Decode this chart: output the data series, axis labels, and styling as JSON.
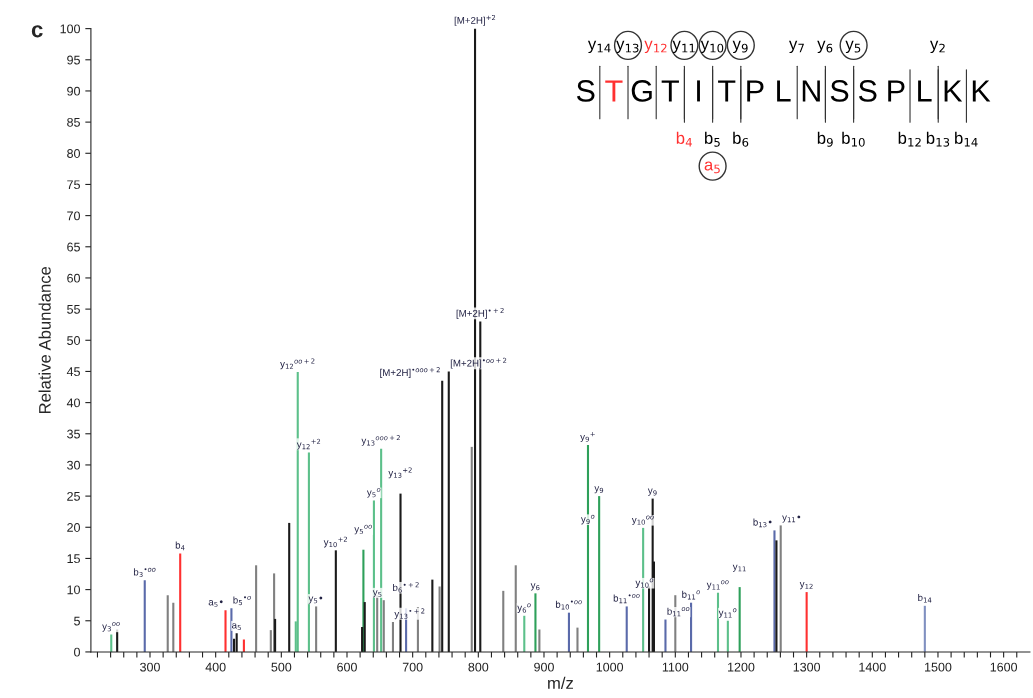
{
  "chart_data": {
    "type": "bar",
    "xlabel": "m/z",
    "ylabel": "Relative Abundance",
    "x": [
      241,
      250,
      292,
      327,
      335.5,
      346,
      415,
      424,
      428,
      432,
      443,
      461.6,
      484,
      489,
      490.5,
      512,
      522,
      525,
      542,
      553,
      583,
      623,
      625,
      627,
      641,
      646,
      652,
      656,
      670,
      681.5,
      690,
      708,
      730,
      741,
      745,
      755,
      790,
      795,
      803,
      838,
      857,
      870,
      887,
      893,
      938,
      951,
      967,
      984,
      1026,
      1051,
      1060,
      1065.5,
      1067.5,
      1085,
      1100,
      1124,
      1165,
      1180,
      1198,
      1251,
      1254,
      1260.5,
      1300,
      1480
    ],
    "values": [
      2.8,
      3.6,
      11.5,
      9.1,
      7.9,
      15.8,
      6.7,
      7.0,
      2.1,
      3.0,
      2.0,
      13.9,
      3.5,
      12.6,
      5.3,
      20.7,
      4.9,
      44.9,
      32.0,
      7.3,
      16.3,
      4.0,
      16.4,
      8.0,
      24.3,
      9.1,
      32.6,
      8.3,
      4.8,
      25.4,
      7.0,
      7.2,
      11.6,
      10.5,
      43.5,
      45.0,
      32.9,
      100,
      53,
      9.8,
      13.9,
      5.8,
      9.4,
      3.6,
      6.3,
      3.9,
      33.2,
      25.0,
      7.3,
      19.9,
      10.5,
      24.6,
      14.5,
      5.2,
      9.1,
      7.9,
      9.5,
      5.0,
      10.4,
      19.5,
      17.9,
      20.3,
      9.6,
      7.4
    ],
    "colors": [
      "#5cc08a",
      "#1a1a1a",
      "#5a6aaa",
      "#808080",
      "#808080",
      "#ff3030",
      "#ff3030",
      "#5a6aaa",
      "#1a1a1a",
      "#1a1a1a",
      "#ff3030",
      "#808080",
      "#808080",
      "#808080",
      "#1a1a1a",
      "#1a1a1a",
      "#5cc08a",
      "#5cc08a",
      "#5cc08a",
      "#808080",
      "#1a1a1a",
      "#1a1a1a",
      "#2ea05a",
      "#1a1a1a",
      "#5cc08a",
      "#808080",
      "#5cc08a",
      "#808080",
      "#808080",
      "#1a1a1a",
      "#5a6aaa",
      "#808080",
      "#1a1a1a",
      "#808080",
      "#1a1a1a",
      "#1a1a1a",
      "#808080",
      "#1a1a1a",
      "#1a1a1a",
      "#808080",
      "#808080",
      "#5cc08a",
      "#2ea05a",
      "#808080",
      "#5a6aaa",
      "#808080",
      "#2ea05a",
      "#2ea05a",
      "#5a6aaa",
      "#5cc08a",
      "#1a1a1a",
      "#1a1a1a",
      "#1a1a1a",
      "#5a6aaa",
      "#808080",
      "#5a6aaa",
      "#5cc08a",
      "#5cc08a",
      "#2ea05a",
      "#5a6aaa",
      "#1a1a1a",
      "#808080",
      "#ff3030",
      "#8090c0"
    ],
    "xlim": [
      210,
      1640
    ],
    "xticks": [
      {
        "value": 220,
        "label": null
      },
      {
        "value": 240,
        "label": null
      },
      {
        "value": 260,
        "label": null
      },
      {
        "value": 280,
        "label": null
      },
      300,
      {
        "value": 320,
        "label": null
      },
      {
        "value": 340,
        "label": null
      },
      {
        "value": 360,
        "label": null
      },
      {
        "value": 380,
        "label": null
      },
      400,
      {
        "value": 420,
        "label": null
      },
      {
        "value": 440,
        "label": null
      },
      {
        "value": 460,
        "label": null
      },
      {
        "value": 480,
        "label": null
      },
      500,
      {
        "value": 520,
        "label": null
      },
      {
        "value": 540,
        "label": null
      },
      {
        "value": 560,
        "label": null
      },
      {
        "value": 580,
        "label": null
      },
      600,
      {
        "value": 620,
        "label": null
      },
      {
        "value": 640,
        "label": null
      },
      {
        "value": 660,
        "label": null
      },
      {
        "value": 680,
        "label": null
      },
      700,
      {
        "value": 720,
        "label": null
      },
      {
        "value": 740,
        "label": null
      },
      {
        "value": 760,
        "label": null
      },
      {
        "value": 780,
        "label": null
      },
      800,
      {
        "value": 820,
        "label": null
      },
      {
        "value": 840,
        "label": null
      },
      {
        "value": 860,
        "label": null
      },
      {
        "value": 880,
        "label": null
      },
      900,
      {
        "value": 920,
        "label": null
      },
      {
        "value": 940,
        "label": null
      },
      {
        "value": 960,
        "label": null
      },
      {
        "value": 980,
        "label": null
      },
      1000,
      {
        "value": 1020,
        "label": null
      },
      {
        "value": 1040,
        "label": null
      },
      {
        "value": 1060,
        "label": null
      },
      {
        "value": 1080,
        "label": null
      },
      1100,
      {
        "value": 1120,
        "label": null
      },
      {
        "value": 1140,
        "label": null
      },
      {
        "value": 1160,
        "label": null
      },
      {
        "value": 1180,
        "label": null
      },
      1200,
      {
        "value": 1220,
        "label": null
      },
      {
        "value": 1240,
        "label": null
      },
      {
        "value": 1260,
        "label": null
      },
      {
        "value": 1280,
        "label": null
      },
      1300,
      {
        "value": 1320,
        "label": null
      },
      {
        "value": 1340,
        "label": null
      },
      {
        "value": 1360,
        "label": null
      },
      {
        "value": 1380,
        "label": null
      },
      1400,
      {
        "value": 1420,
        "label": null
      },
      {
        "value": 1440,
        "label": null
      },
      {
        "value": 1460,
        "label": null
      },
      {
        "value": 1480,
        "label": null
      },
      1500,
      {
        "value": 1520,
        "label": null
      },
      {
        "value": 1540,
        "label": null
      },
      {
        "value": 1560,
        "label": null
      },
      {
        "value": 1580,
        "label": null
      },
      1600,
      {
        "value": 1620,
        "label": null
      }
    ],
    "ylim": [
      0,
      100
    ],
    "yticks": [
      0,
      5,
      10,
      15,
      20,
      25,
      30,
      35,
      40,
      45,
      50,
      55,
      60,
      65,
      70,
      75,
      80,
      85,
      90,
      95,
      100
    ],
    "grid": false,
    "annotations": [
      "c",
      "S",
      "T",
      "G",
      "T",
      "I",
      "T",
      "P",
      "L",
      "N",
      "S",
      "S",
      "P",
      "L",
      "K",
      "K",
      "y$_{14}$",
      "y$_{13}$",
      "y$_{12}$",
      "y$_{11}$",
      "y$_{10}$",
      "y$_{9}$",
      "y$_{7}$",
      "y$_{6}$",
      "y$_{5}$",
      "y$_{2}$",
      "b$_{4}$",
      "b$_{5}$",
      "b$_{6}$",
      "b$_{9}$",
      "b$_{10}$",
      "b$_{12}$",
      "b$_{13}$",
      "b$_{14}$",
      "a$_{5}$",
      {
        "text": "[M+2H]$^{+2}$",
        "x": 795,
        "y": 100
      },
      {
        "text": "[M+2H]$^{•+2}$",
        "x": 803,
        "y": 53
      },
      {
        "text": "[M+2H]$^{•oo+2}$",
        "x": 755,
        "y": 45.0
      },
      {
        "text": "[M+2H]$^{•ooo+2}$",
        "x": 745,
        "y": 43.5
      },
      {
        "text": "y$_{3}$$^{oo}$",
        "x": 241,
        "y": 2.8
      },
      {
        "text": "b$_{3}$$^{•oo}$",
        "x": 292,
        "y": 11.5
      },
      {
        "text": "b$_{4}$",
        "x": 346,
        "y": 15.8
      },
      {
        "text": "a$_{5}$•",
        "x": 415,
        "y": 6.7
      },
      {
        "text": "b$_{5}$$^{•o}$",
        "x": 424,
        "y": 7.0
      },
      {
        "text": "a$_{5}$",
        "x": 432,
        "y": 3.0
      },
      {
        "text": "y$_{12}$$^{oo+2}$",
        "x": 525,
        "y": 44.9
      },
      {
        "text": "y$_{12}$$^{+2}$",
        "x": 542,
        "y": 32.0
      },
      {
        "text": "y$_{5}$•",
        "x": 553,
        "y": 7.3
      },
      {
        "text": "y$_{10}$$^{+2}$",
        "x": 583,
        "y": 16.3
      },
      {
        "text": "y$_{5}$$^{oo}$",
        "x": 625,
        "y": 16.4
      },
      {
        "text": "y$_{5}$$^{o}$",
        "x": 641,
        "y": 24.3
      },
      {
        "text": "y$_{13}$$^{ooo+2}$",
        "x": 652,
        "y": 32.6
      },
      {
        "text": "y$_{5}$",
        "x": 656,
        "y": 8.3
      },
      {
        "text": "y$_{13}$$^{+2}$",
        "x": 681.5,
        "y": 25.4
      },
      {
        "text": "y$_{13}$$^{•+2}$",
        "x": 670,
        "y": 4.8
      },
      {
        "text": "b$_{6}$$^{•+2}$",
        "x": 690,
        "y": 7.0
      },
      {
        "text": "y$_{6}$$^{o}$",
        "x": 870,
        "y": 5.8
      },
      {
        "text": "y$_{6}$",
        "x": 887,
        "y": 9.4
      },
      {
        "text": "b$_{10}$$^{•oo}$",
        "x": 938,
        "y": 6.3
      },
      {
        "text": "y$_{9}$$^{o}$",
        "x": 967,
        "y": 20
      },
      {
        "text": "y$_{9}$$^{+}$",
        "x": 967,
        "y": 33.2
      },
      {
        "text": "y$_{9}$",
        "x": 984,
        "y": 25.0
      },
      {
        "text": "b$_{11}$$^{•oo}$",
        "x": 1026,
        "y": 7.3
      },
      {
        "text": "y$_{10}$$^{oo}$",
        "x": 1051,
        "y": 19.9
      },
      {
        "text": "y$_{9}$",
        "x": 1065.5,
        "y": 24.6
      },
      {
        "text": "y$_{10}$$^{o}$",
        "x": 1069.5,
        "y": 7.8
      },
      {
        "text": "b$_{11}$$^{oo}$",
        "x": 1085,
        "y": 5.2
      },
      {
        "text": "b$_{11}$$^{o}$",
        "x": 1124,
        "y": 7.9
      },
      {
        "text": "y$_{11}$$^{oo}$",
        "x": 1165,
        "y": 9.5
      },
      {
        "text": "y$_{11}$$^{o}$",
        "x": 1180,
        "y": 5.0
      },
      {
        "text": "y$_{11}$",
        "x": 1198,
        "y": 10.4
      },
      {
        "text": "b$_{13}$•",
        "x": 1251,
        "y": 19.5
      },
      {
        "text": "y$_{11}$•",
        "x": 1260.5,
        "y": 20.3
      },
      {
        "text": "y$_{12}$",
        "x": 1300,
        "y": 9.6
      },
      {
        "text": "b$_{14}$",
        "x": 1480,
        "y": 7.4
      }
    ]
  }
}
